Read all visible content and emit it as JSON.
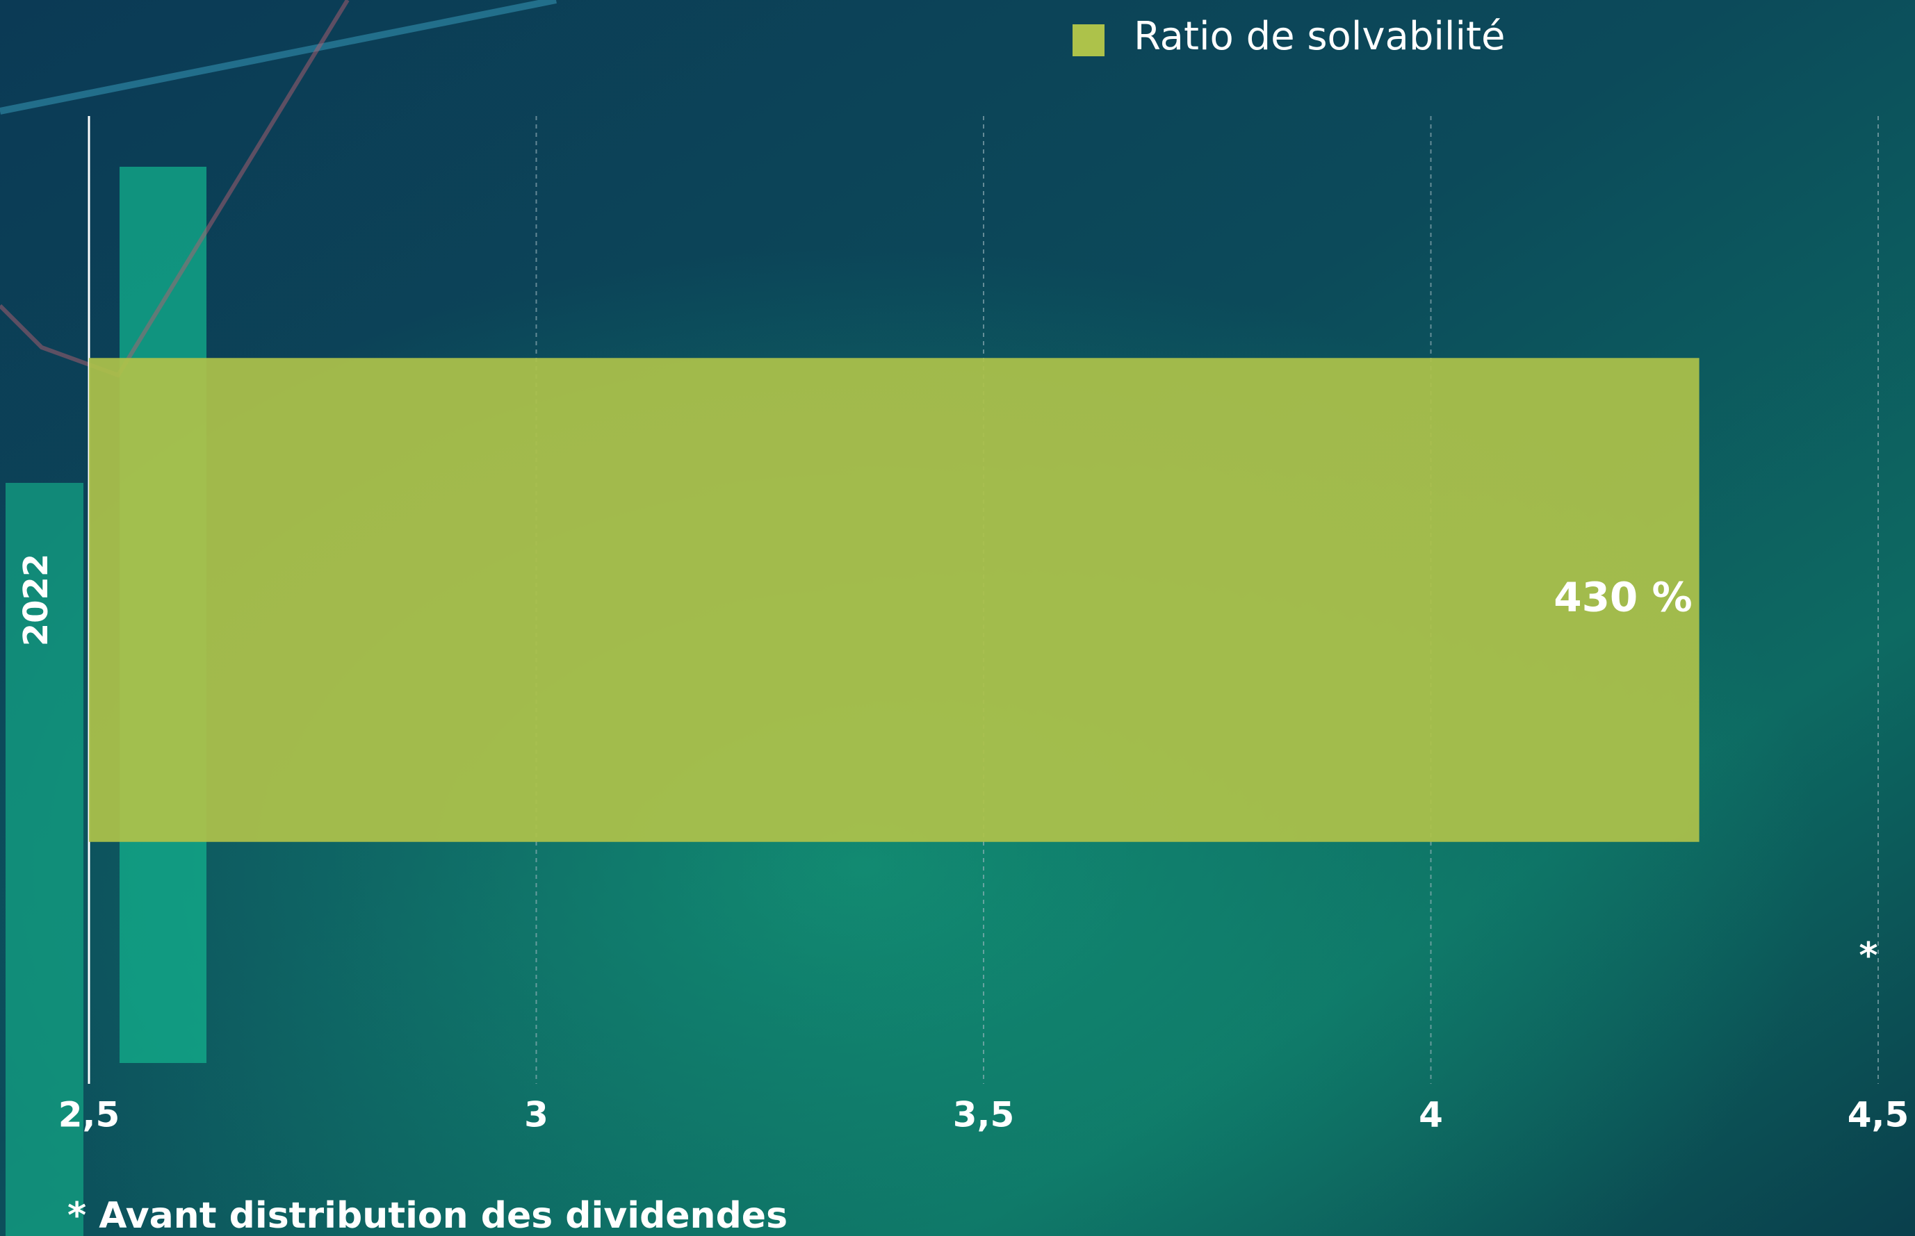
{
  "chart_data": {
    "type": "bar",
    "orientation": "horizontal",
    "legend": "Ratio de solvabilité",
    "categories": [
      "2022"
    ],
    "series": [
      {
        "name": "Ratio de solvabilité",
        "color": "#adc24a",
        "values": [
          4.3
        ],
        "value_labels": [
          "430 %"
        ]
      }
    ],
    "xlim": [
      2.5,
      4.5
    ],
    "xticks": [
      {
        "value": 2.5,
        "label": "2,5"
      },
      3,
      {
        "value": 3.5,
        "label": "3,5"
      },
      4,
      {
        "value": 4.5,
        "label": "4,5"
      }
    ],
    "grid": true,
    "annotations": [
      "*"
    ],
    "footnote": "* Avant distribution des dividendes"
  }
}
